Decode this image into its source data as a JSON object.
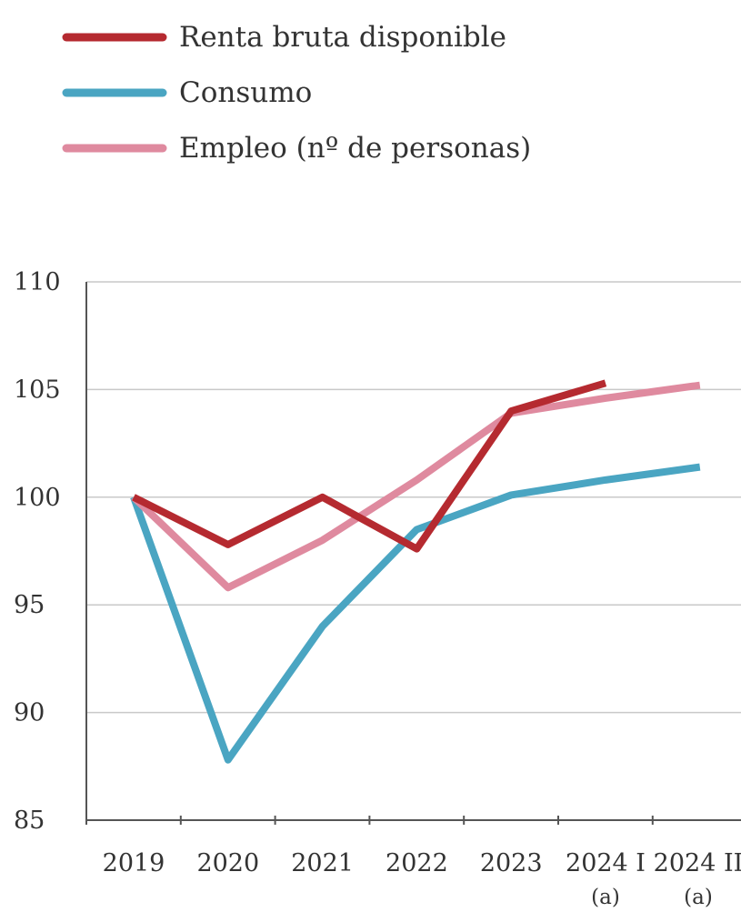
{
  "chart_data": {
    "type": "line",
    "categories": [
      "2019",
      "2020",
      "2021",
      "2022",
      "2023",
      "2024 I",
      "2024 II"
    ],
    "category_notes": [
      "",
      "",
      "",
      "",
      "",
      "(a)",
      "(a)"
    ],
    "ylim": [
      85,
      110
    ],
    "yticks": [
      85,
      90,
      95,
      100,
      105,
      110
    ],
    "grid": "horizontal",
    "legend_position": "top-left",
    "series": [
      {
        "name": "Renta bruta disponible",
        "color": "#b52a30",
        "values": [
          100,
          97.8,
          100,
          97.6,
          104,
          105.3,
          null
        ]
      },
      {
        "name": "Consumo",
        "color": "#4aa5c2",
        "values": [
          100,
          87.8,
          94,
          98.5,
          100.1,
          100.8,
          101.4
        ]
      },
      {
        "name": "Empleo (nº de personas)",
        "color": "#df8a9f",
        "values": [
          100,
          95.8,
          98,
          100.8,
          103.9,
          104.6,
          105.2
        ]
      }
    ]
  }
}
